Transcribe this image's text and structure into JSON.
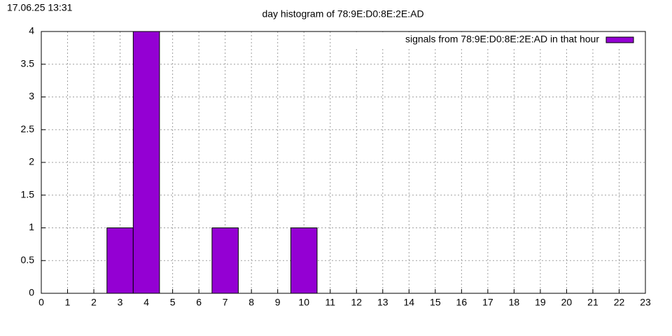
{
  "chart_data": {
    "type": "bar",
    "timestamp": "17.06.25 13:31",
    "title": "day histogram of 78:9E:D0:8E:2E:AD",
    "x": [
      3,
      4,
      7,
      10
    ],
    "series": [
      {
        "name": "signals from 78:9E:D0:8E:2E:AD in that hour",
        "color": "#9400d3",
        "values": [
          1,
          4,
          1,
          1
        ]
      }
    ],
    "xlim": [
      0,
      23
    ],
    "xticks": [
      0,
      1,
      2,
      3,
      4,
      5,
      6,
      7,
      8,
      9,
      10,
      11,
      12,
      13,
      14,
      15,
      16,
      17,
      18,
      19,
      20,
      21,
      22,
      23
    ],
    "ylim": [
      0,
      4
    ],
    "yticks": [
      0,
      0.5,
      1,
      1.5,
      2,
      2.5,
      3,
      3.5,
      4
    ],
    "grid": true,
    "legend": "top-right"
  }
}
